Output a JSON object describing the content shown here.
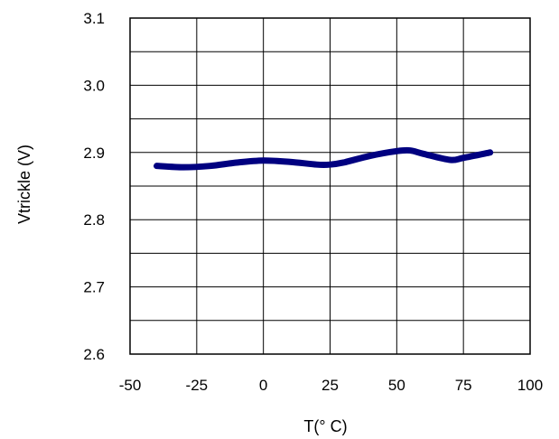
{
  "chart_data": {
    "type": "line",
    "title": "",
    "xlabel": "T(° C)",
    "ylabel": "Vtrickle (V)",
    "xlim": [
      -50,
      100
    ],
    "ylim": [
      2.6,
      3.1
    ],
    "x_ticks": [
      "-50",
      "-25",
      "0",
      "25",
      "50",
      "75",
      "100"
    ],
    "y_ticks": [
      "3.1",
      "3.0",
      "2.9",
      "2.8",
      "2.7",
      "2.6"
    ],
    "grid": true,
    "legend": "none",
    "line_color": "#000080",
    "series": [
      {
        "x": [
          -40,
          -30,
          -20,
          -10,
          0,
          10,
          20,
          25,
          30,
          40,
          50,
          55,
          60,
          70,
          75,
          85
        ],
        "values": [
          2.88,
          2.878,
          2.88,
          2.885,
          2.888,
          2.886,
          2.882,
          2.882,
          2.885,
          2.895,
          2.902,
          2.903,
          2.898,
          2.889,
          2.892,
          2.9
        ]
      }
    ]
  }
}
